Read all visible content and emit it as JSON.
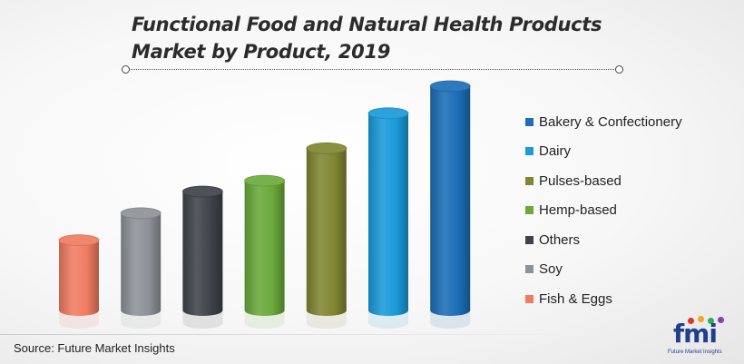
{
  "title_line1": "Functional Food and Natural Health Products",
  "title_line2": "Market by Product, 2019",
  "source": "Source: Future Market Insights",
  "logo": {
    "mark": "fmi",
    "subtitle": "Future Market Insights"
  },
  "chart_data": {
    "type": "bar",
    "style": "3d-cylinder",
    "legend_position": "right",
    "grid": false,
    "categories": [
      "Fish & Eggs",
      "Soy",
      "Others",
      "Hemp-based",
      "Pulses-based",
      "Dairy",
      "Bakery & Confectionery"
    ],
    "values": [
      26,
      36,
      44,
      48,
      60,
      73,
      83
    ],
    "ylim": [
      0,
      90
    ],
    "colors": [
      "#f07c62",
      "#8d9298",
      "#3f4349",
      "#6aaa3a",
      "#808631",
      "#1a9ad9",
      "#1c6eb6"
    ],
    "legend_order": [
      "Bakery & Confectionery",
      "Dairy",
      "Pulses-based",
      "Hemp-based",
      "Others",
      "Soy",
      "Fish & Eggs"
    ]
  }
}
